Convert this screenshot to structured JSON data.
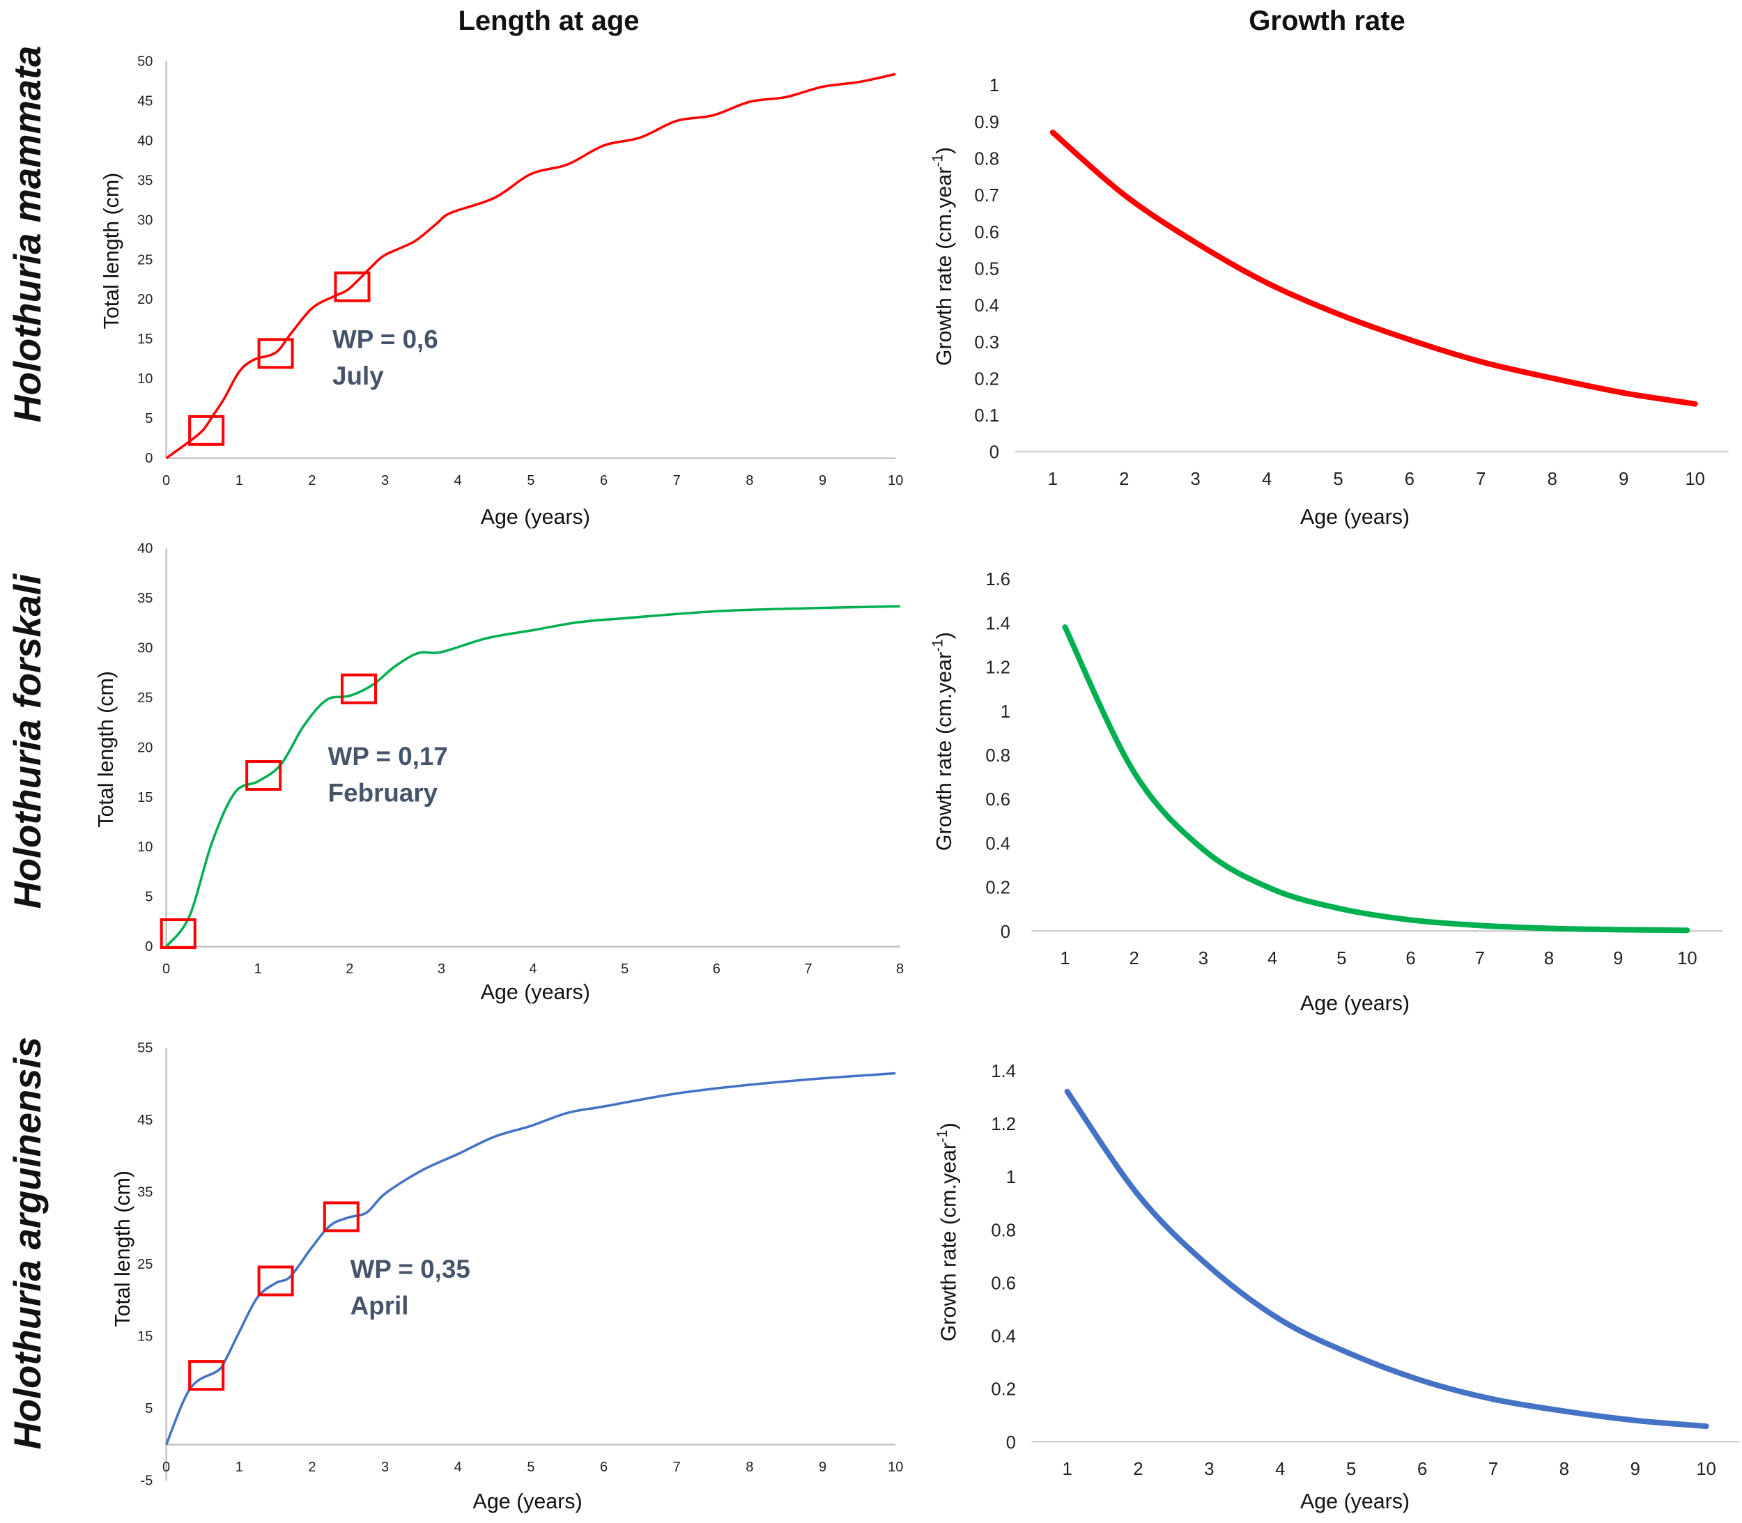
{
  "column_titles": {
    "length": "Length at age",
    "growth": "Growth rate"
  },
  "species": [
    "Holothuria mammata",
    "Holothuria forskali",
    "Holothuria arguinensis"
  ],
  "chart_data": [
    {
      "id": "mammata-length",
      "type": "line",
      "color": "#ff0000",
      "xlabel": "Age (years)",
      "ylabel": "Total length (cm)",
      "xlim": [
        0,
        10
      ],
      "ylim": [
        0,
        50
      ],
      "xticks": [
        0,
        1,
        2,
        3,
        4,
        5,
        6,
        7,
        8,
        9,
        10
      ],
      "yticks": [
        0,
        5,
        10,
        15,
        20,
        25,
        30,
        35,
        40,
        45,
        50
      ],
      "x": [
        0,
        0.3,
        0.5,
        0.65,
        0.8,
        1,
        1.2,
        1.5,
        1.7,
        2,
        2.3,
        2.5,
        2.8,
        3,
        3.4,
        3.7,
        3.9,
        4.5,
        5,
        5.5,
        6,
        6.5,
        7,
        7.5,
        8,
        8.5,
        9,
        9.5,
        10
      ],
      "y": [
        0,
        2,
        3.5,
        5.5,
        7.6,
        10.9,
        12.4,
        13.3,
        15.6,
        18.9,
        20.4,
        21.3,
        24,
        25.6,
        27.3,
        29.5,
        30.9,
        32.8,
        35.8,
        37,
        39.4,
        40.4,
        42.5,
        43.2,
        44.9,
        45.5,
        46.8,
        47.4,
        48.4
      ],
      "markers": [
        {
          "x": 0.55,
          "y": 3.5
        },
        {
          "x": 1.5,
          "y": 13.2
        },
        {
          "x": 2.55,
          "y": 21.6
        }
      ],
      "annotation": [
        "WP = 0,6",
        "July"
      ]
    },
    {
      "id": "forskali-length",
      "type": "line",
      "color": "#00b050",
      "xlabel": "Age (years)",
      "ylabel": "Total length (cm)",
      "xlim": [
        0,
        8
      ],
      "ylim": [
        0,
        40
      ],
      "xticks": [
        0,
        1,
        2,
        3,
        4,
        5,
        6,
        7,
        8
      ],
      "yticks": [
        0,
        5,
        10,
        15,
        20,
        25,
        30,
        35,
        40
      ],
      "x": [
        0,
        0.25,
        0.5,
        0.75,
        1,
        1.25,
        1.5,
        1.75,
        2,
        2.25,
        2.5,
        2.75,
        3,
        3.5,
        4,
        4.5,
        5,
        6,
        7,
        8
      ],
      "y": [
        0,
        3,
        10.5,
        15.5,
        16.6,
        18.3,
        22.2,
        24.8,
        25.2,
        26.3,
        28.2,
        29.5,
        29.6,
        31,
        31.8,
        32.6,
        33,
        33.7,
        34,
        34.2
      ],
      "markers": [
        {
          "x": 0.13,
          "y": 1.3
        },
        {
          "x": 1.06,
          "y": 17.2
        },
        {
          "x": 2.1,
          "y": 25.9
        }
      ],
      "annotation": [
        "WP = 0,17",
        "February"
      ]
    },
    {
      "id": "arguinensis-length",
      "type": "line",
      "color": "#4472c4",
      "xlabel": "Age (years)",
      "ylabel": "Total length (cm)",
      "xlim": [
        0,
        10
      ],
      "ylim": [
        -5,
        55
      ],
      "xticks": [
        0,
        1,
        2,
        3,
        4,
        5,
        6,
        7,
        8,
        9,
        10
      ],
      "yticks": [
        -5,
        5,
        15,
        25,
        35,
        45,
        55
      ],
      "x": [
        0,
        0.33,
        0.7,
        0.8,
        1,
        1.25,
        1.5,
        1.7,
        2,
        2.25,
        2.5,
        2.75,
        3,
        3.5,
        4,
        4.5,
        5,
        5.5,
        6,
        7,
        8,
        9,
        10
      ],
      "y": [
        0,
        7.8,
        10.2,
        11.5,
        15.6,
        20.4,
        22.4,
        23.3,
        27.4,
        30.4,
        31.5,
        32.2,
        34.8,
        38,
        40.3,
        42.7,
        44.2,
        46,
        46.9,
        48.7,
        49.9,
        50.8,
        51.5
      ],
      "markers": [
        {
          "x": 0.55,
          "y": 9.6
        },
        {
          "x": 1.5,
          "y": 22.7
        },
        {
          "x": 2.4,
          "y": 31.6
        }
      ],
      "annotation": [
        "WP = 0,35",
        "April"
      ]
    },
    {
      "id": "mammata-growth",
      "type": "line",
      "color": "#ff0000",
      "xlabel": "Age (years)",
      "ylabel": "Growth rate (cm.year",
      "ylabel_sup": "-1",
      "ylabel_end": ")",
      "ylim": [
        0,
        1
      ],
      "categories": [
        1,
        2,
        3,
        4,
        5,
        6,
        7,
        8,
        9,
        10
      ],
      "yticks": [
        0,
        0.1,
        0.2,
        0.3,
        0.4,
        0.5,
        0.6,
        0.7,
        0.8,
        0.9,
        1
      ],
      "values": [
        0.87,
        0.7,
        0.57,
        0.46,
        0.375,
        0.305,
        0.245,
        0.2,
        0.16,
        0.13
      ]
    },
    {
      "id": "forskali-growth",
      "type": "line",
      "color": "#00b050",
      "xlabel": "Age (years)",
      "ylabel": "Growth rate (cm.year",
      "ylabel_sup": "-1",
      "ylabel_end": ")",
      "ylim": [
        0,
        1.6
      ],
      "categories": [
        1,
        2,
        3,
        4,
        5,
        6,
        7,
        8,
        9,
        10
      ],
      "yticks": [
        0,
        0.2,
        0.4,
        0.6,
        0.8,
        1,
        1.2,
        1.4,
        1.6
      ],
      "values": [
        1.38,
        0.72,
        0.37,
        0.19,
        0.1,
        0.05,
        0.025,
        0.012,
        0.006,
        0.003
      ]
    },
    {
      "id": "arguinensis-growth",
      "type": "line",
      "color": "#4472c4",
      "xlabel": "Age (years)",
      "ylabel": "Growth rate (cm.year",
      "ylabel_sup": "-1",
      "ylabel_end": ")",
      "ylim": [
        0,
        1.4
      ],
      "categories": [
        1,
        2,
        3,
        4,
        5,
        6,
        7,
        8,
        9,
        10
      ],
      "yticks": [
        0,
        0.2,
        0.4,
        0.6,
        0.8,
        1,
        1.2,
        1.4
      ],
      "values": [
        1.32,
        0.93,
        0.66,
        0.46,
        0.33,
        0.23,
        0.16,
        0.115,
        0.08,
        0.058
      ]
    }
  ]
}
